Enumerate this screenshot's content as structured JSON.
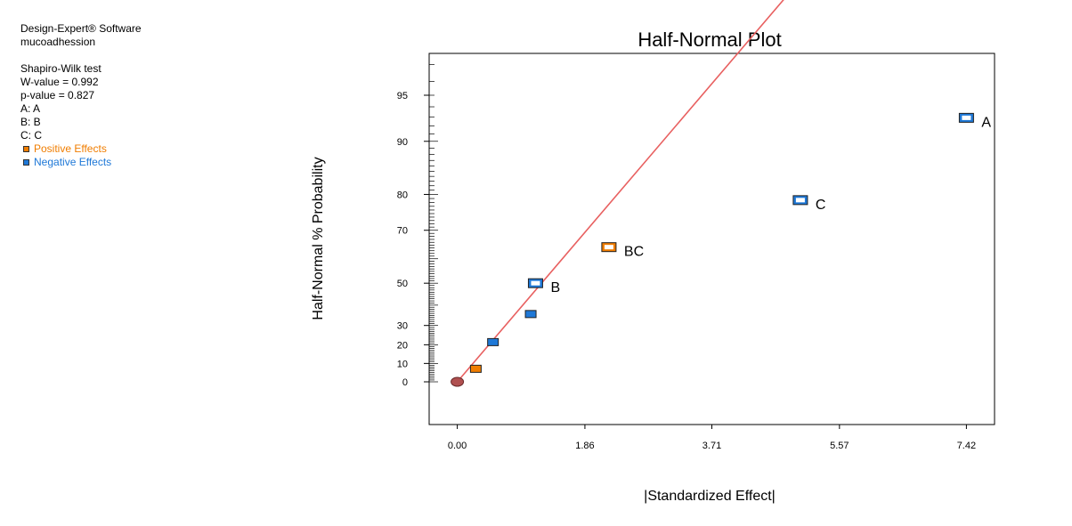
{
  "info": {
    "software": "Design-Expert® Software",
    "response": "mucoadhession",
    "test_title": "Shapiro-Wilk test",
    "w_value": "W-value = 0.992",
    "p_value": "p-value = 0.827",
    "factors": [
      "A: A",
      "B: B",
      "C: C"
    ],
    "legend": [
      {
        "label": "Positive Effects",
        "color": "#F07D00"
      },
      {
        "label": "Negative Effects",
        "color": "#1E78D7"
      }
    ]
  },
  "chart_data": {
    "type": "scatter",
    "title": "Half-Normal Plot",
    "xlabel": "|Standardized Effect|",
    "ylabel": "Half-Normal % Probability",
    "xlim": [
      -0.41,
      7.83
    ],
    "xticks": [
      "0.00",
      "1.86",
      "3.71",
      "5.57",
      "7.42"
    ],
    "yticks": [
      "0",
      "10",
      "20",
      "30",
      "50",
      "70",
      "80",
      "90",
      "95"
    ],
    "y_scale": "half-normal probability",
    "points": [
      {
        "x": 7.42,
        "y": 92.9,
        "sign": "negative",
        "label": "A",
        "selected": true
      },
      {
        "x": 5.0,
        "y": 78.6,
        "sign": "negative",
        "label": "C",
        "selected": true
      },
      {
        "x": 2.21,
        "y": 64.3,
        "sign": "positive",
        "label": "BC",
        "selected": true
      },
      {
        "x": 1.14,
        "y": 50.0,
        "sign": "negative",
        "label": "B",
        "selected": true
      },
      {
        "x": 1.07,
        "y": 35.7,
        "sign": "negative",
        "label": "",
        "selected": false
      },
      {
        "x": 0.52,
        "y": 21.4,
        "sign": "negative",
        "label": "",
        "selected": false
      },
      {
        "x": 0.27,
        "y": 7.1,
        "sign": "positive",
        "label": "",
        "selected": false
      },
      {
        "x": 0.0,
        "y": 0,
        "sign": "error",
        "label": "",
        "selected": false
      }
    ],
    "fit_line": {
      "x0": 0.0,
      "y0": 0,
      "x1": 5.0,
      "y1": 99.4,
      "color": "#E86060"
    },
    "colors": {
      "positive": "#F07D00",
      "negative": "#1E78D7",
      "error": "#B05050",
      "frame": "#000000"
    }
  }
}
